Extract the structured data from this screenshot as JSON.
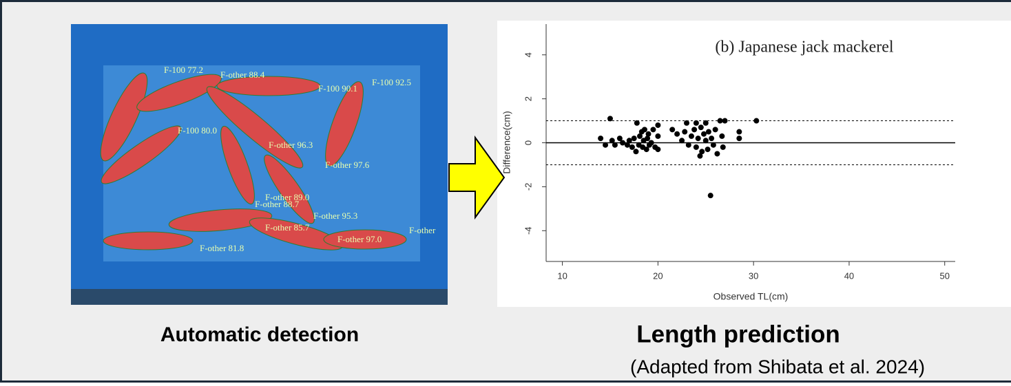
{
  "panels": {
    "left_caption": "Automatic detection",
    "right_caption": "Length prediction",
    "credit": "(Adapted from Shibata et al. 2024)"
  },
  "detections": [
    "F-100 77.2",
    "F-other 88.4",
    "F-100 90.1",
    "F-100 92.5",
    "F-100 80.0",
    "F-other 96.3",
    "F-other 97.6",
    "F-other 89.0",
    "F-other 88.7",
    "F-other 95.3",
    "F-other 85.7",
    "F-other 97.0",
    "F-other 81.8",
    "F-other"
  ],
  "chart_data": {
    "type": "scatter",
    "title": "(b) Japanese jack mackerel",
    "x_label": "Observed TL(cm)",
    "y_label": "Difference(cm)",
    "color": "#000000",
    "x": [
      14,
      14.5,
      15,
      15.2,
      15.5,
      16,
      16.3,
      16.8,
      17,
      17.3,
      17.5,
      17.7,
      17.8,
      18,
      18.1,
      18.3,
      18.4,
      18.5,
      18.6,
      18.8,
      18.9,
      19,
      19.1,
      19.3,
      19.5,
      19.7,
      20,
      20,
      20,
      21.5,
      22,
      22.5,
      22.8,
      23,
      23.2,
      23.5,
      23.8,
      24,
      24,
      24.2,
      24.5,
      24.6,
      24.8,
      25,
      25,
      25.2,
      25.3,
      25.5,
      25.6,
      25.8,
      26,
      26.2,
      26.5,
      26.7,
      26.8,
      27,
      28.5,
      28.5,
      30.3,
      24.4
    ],
    "values": [
      0.2,
      -0.1,
      1.1,
      0.1,
      -0.1,
      0.2,
      0,
      -0.1,
      0.1,
      -0.2,
      0.2,
      -0.4,
      0.9,
      -0.1,
      0.3,
      0.5,
      -0.2,
      0.1,
      0.6,
      -0.3,
      0.2,
      0.4,
      -0.1,
      0,
      0.6,
      -0.2,
      0.3,
      0.8,
      -0.3,
      0.6,
      0.4,
      0.1,
      0.5,
      0.9,
      -0.1,
      0.3,
      0.6,
      0.9,
      -0.2,
      0.2,
      0.7,
      -0.4,
      0.4,
      0.1,
      0.9,
      -0.3,
      0.5,
      -2.4,
      0.2,
      -0.1,
      0.6,
      -0.5,
      1.0,
      0.3,
      -0.2,
      1.0,
      0.5,
      0.2,
      1.0,
      -0.6
    ],
    "hlines": [
      {
        "value": 0,
        "style": "solid"
      },
      {
        "value": 1,
        "style": "dashed"
      },
      {
        "value": -1,
        "style": "dashed"
      }
    ],
    "xlim": [
      8.3,
      51.1
    ],
    "ylim": [
      -5.4,
      5.4
    ],
    "xticks": [
      10,
      20,
      30,
      40,
      50
    ],
    "yticks": [
      -4,
      -2,
      0,
      2,
      4
    ]
  }
}
